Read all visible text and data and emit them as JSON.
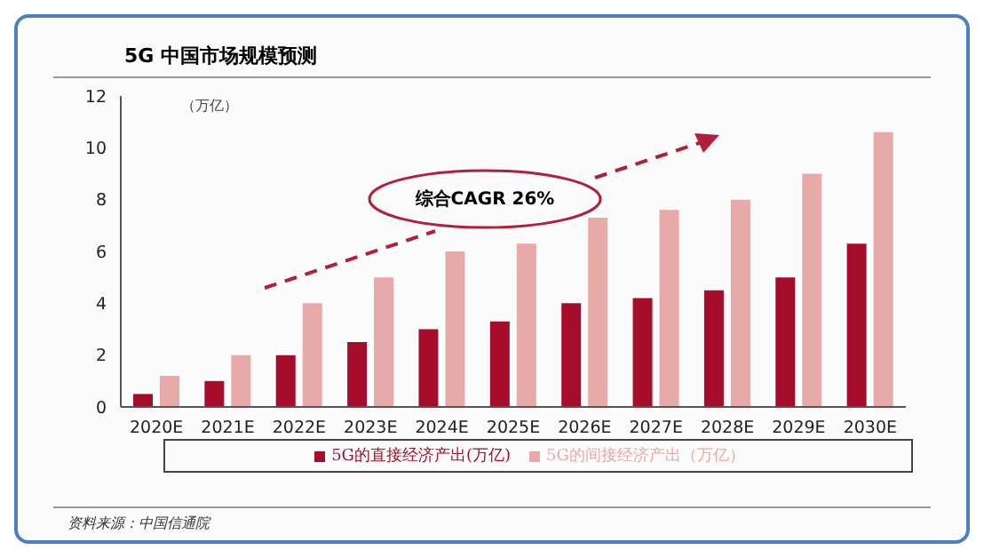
{
  "chart_data": {
    "type": "bar",
    "title": "5G 中国市场规模预测",
    "ylabel": "（万亿）",
    "categories": [
      "2020E",
      "2021E",
      "2022E",
      "2023E",
      "2024E",
      "2025E",
      "2026E",
      "2027E",
      "2028E",
      "2029E",
      "2030E"
    ],
    "series": [
      {
        "name": "5G的直接经济产出(万亿)",
        "color": "#a50d2a",
        "values": [
          0.5,
          1,
          2,
          2.5,
          3,
          3.3,
          4,
          4.2,
          4.5,
          5,
          6.3
        ]
      },
      {
        "name": "5G的间接经济产出（万亿）",
        "color": "#e8a9a9",
        "values": [
          1.2,
          2,
          4,
          5,
          6,
          6.3,
          7.3,
          7.6,
          8,
          9,
          10.6
        ]
      }
    ],
    "ylim": [
      0,
      12
    ],
    "yticks": [
      0,
      2,
      4,
      6,
      8,
      10,
      12
    ],
    "grid": false,
    "legend": "bottom",
    "annotations": [
      "综合CAGR 26%",
      "资料来源：中国信通院"
    ]
  }
}
